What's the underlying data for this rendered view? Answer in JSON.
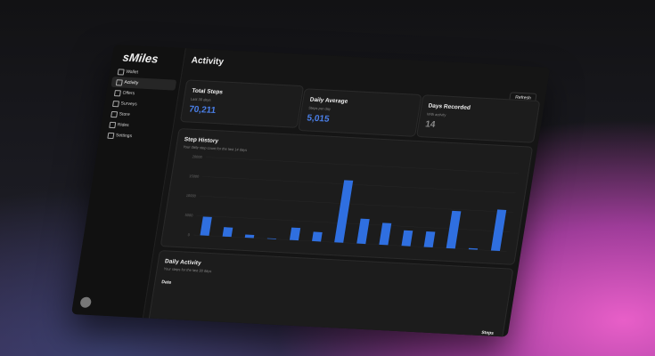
{
  "sidebar": {
    "brand": "sMiles",
    "nav": [
      "Wallet",
      "Activity",
      "Offers",
      "Surveys",
      "Store",
      "Rides",
      "Settings"
    ]
  },
  "header": {
    "title": "Activity",
    "refresh": "Refresh"
  },
  "cards": [
    {
      "title": "Total Steps",
      "subtitle": "Last 30 days",
      "value": "70,211"
    },
    {
      "title": "Daily Average",
      "subtitle": "Steps per day",
      "value": "5,015"
    },
    {
      "title": "Days Recorded",
      "subtitle": "With activity",
      "value": "14"
    }
  ],
  "step_history": {
    "type": "bar",
    "title": "Step History",
    "subtitle": "Your daily step count for the last 14 days",
    "values": [
      4800,
      2400,
      800,
      160,
      3200,
      2400,
      16000,
      6400,
      5600,
      4000,
      4000,
      9600,
      320,
      10531
    ],
    "color": "#2f6fe0",
    "ylim": [
      0,
      20000
    ],
    "yticks": [
      0,
      5000,
      10000,
      15000,
      20000
    ]
  },
  "daily_activity": {
    "title": "Daily Activity",
    "subtitle": "Your steps for the last 30 days",
    "columns": [
      "Date",
      "Steps"
    ]
  }
}
